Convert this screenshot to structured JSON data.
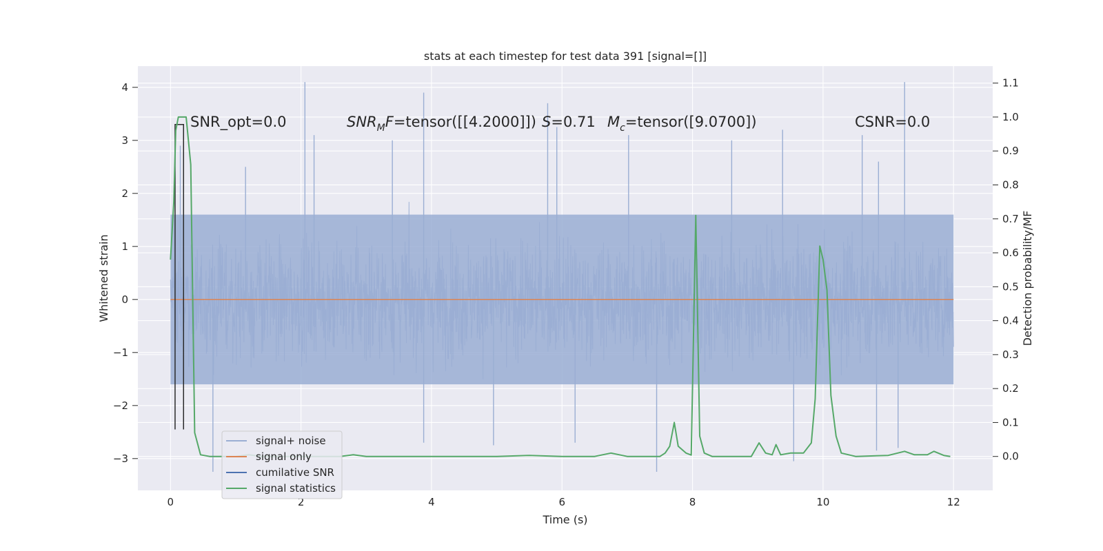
{
  "chart_data": {
    "type": "line",
    "title": "stats at each timestep for test data 391 [signal=[]]",
    "xlabel": "Time (s)",
    "ylabel": "Whitened strain",
    "y2label": "Detection probability/MF",
    "xlim": [
      -0.5,
      12.6
    ],
    "ylim": [
      -3.6,
      4.4
    ],
    "y2lim": [
      -0.1,
      1.15
    ],
    "xticks": [
      "0",
      "2",
      "4",
      "6",
      "8",
      "10",
      "12"
    ],
    "yticks": [
      "4",
      "3",
      "2",
      "1",
      "0",
      "−1",
      "−2",
      "−3"
    ],
    "y2ticks": [
      "1.1",
      "1.0",
      "0.9",
      "0.8",
      "0.7",
      "0.6",
      "0.5",
      "0.4",
      "0.3",
      "0.2",
      "0.1",
      "0.0"
    ],
    "grid": true,
    "legend_position": "lower-left",
    "annotations": {
      "snr_opt": "SNR_opt=0.0",
      "snr_mf_sym": "SNR",
      "snr_mf_sub": "M",
      "snr_mf_f": "F",
      "snr_mf_val": "=tensor([[4.2000]])",
      "s_sym": "S",
      "s_val": "=0.71",
      "mc_sym": "M",
      "mc_sub": "c",
      "mc_val": "=tensor([9.0700])",
      "csnr": "CSNR=0.0"
    },
    "series": [
      {
        "name": "signal+ noise",
        "axis": "left",
        "color": "#9aaed3",
        "style": "dense noise, envelope about ±1.6 with spikes to about ±2.7, max about 4.1",
        "spikes": [
          [
            2.06,
            4.1
          ],
          [
            3.88,
            3.9
          ],
          [
            5.78,
            3.7
          ],
          [
            11.25,
            4.1
          ],
          [
            2.2,
            3.1
          ],
          [
            3.4,
            3.0
          ],
          [
            5.92,
            3.25
          ],
          [
            7.02,
            3.1
          ],
          [
            8.6,
            3.0
          ],
          [
            9.38,
            3.2
          ],
          [
            10.6,
            3.1
          ],
          [
            10.85,
            2.6
          ],
          [
            0.15,
            2.9
          ],
          [
            1.15,
            2.5
          ],
          [
            0.65,
            -3.25
          ],
          [
            3.88,
            -2.7
          ],
          [
            7.45,
            -3.25
          ],
          [
            9.55,
            -3.05
          ],
          [
            10.82,
            -2.85
          ],
          [
            11.15,
            -2.8
          ],
          [
            4.95,
            -2.75
          ],
          [
            6.2,
            -2.7
          ]
        ]
      },
      {
        "name": "signal only",
        "axis": "left",
        "color": "#dd8452",
        "points": [
          [
            0,
            0
          ],
          [
            12,
            0
          ]
        ]
      },
      {
        "name": "cumilative SNR",
        "axis": "left",
        "color": "#4c72b0"
      },
      {
        "name": "signal statistics",
        "axis": "right",
        "color": "#55a868",
        "points": [
          [
            0,
            0.58
          ],
          [
            0.05,
            0.75
          ],
          [
            0.08,
            0.96
          ],
          [
            0.12,
            1.0
          ],
          [
            0.18,
            1.0
          ],
          [
            0.24,
            1.0
          ],
          [
            0.31,
            0.86
          ],
          [
            0.37,
            0.07
          ],
          [
            0.46,
            0.005
          ],
          [
            0.6,
            0.0
          ],
          [
            1.0,
            0.0
          ],
          [
            1.2,
            0.005
          ],
          [
            1.4,
            0.0
          ],
          [
            2.0,
            0.0
          ],
          [
            2.6,
            0.0
          ],
          [
            2.8,
            0.005
          ],
          [
            3.0,
            0.0
          ],
          [
            4.0,
            0.0
          ],
          [
            5.0,
            0.0
          ],
          [
            5.5,
            0.003
          ],
          [
            6.0,
            0.0
          ],
          [
            6.5,
            0.0
          ],
          [
            6.75,
            0.01
          ],
          [
            7.0,
            0.0
          ],
          [
            7.5,
            0.0
          ],
          [
            7.58,
            0.01
          ],
          [
            7.65,
            0.03
          ],
          [
            7.72,
            0.1
          ],
          [
            7.78,
            0.03
          ],
          [
            7.9,
            0.01
          ],
          [
            7.98,
            0.004
          ],
          [
            8.05,
            0.71
          ],
          [
            8.11,
            0.06
          ],
          [
            8.18,
            0.01
          ],
          [
            8.3,
            0.0
          ],
          [
            8.9,
            0.0
          ],
          [
            9.02,
            0.04
          ],
          [
            9.12,
            0.01
          ],
          [
            9.22,
            0.005
          ],
          [
            9.28,
            0.035
          ],
          [
            9.35,
            0.005
          ],
          [
            9.5,
            0.01
          ],
          [
            9.7,
            0.01
          ],
          [
            9.82,
            0.04
          ],
          [
            9.88,
            0.17
          ],
          [
            9.95,
            0.62
          ],
          [
            10.0,
            0.58
          ],
          [
            10.06,
            0.49
          ],
          [
            10.12,
            0.18
          ],
          [
            10.2,
            0.06
          ],
          [
            10.28,
            0.01
          ],
          [
            10.5,
            0.0
          ],
          [
            11.0,
            0.003
          ],
          [
            11.25,
            0.015
          ],
          [
            11.4,
            0.005
          ],
          [
            11.6,
            0.005
          ],
          [
            11.7,
            0.015
          ],
          [
            11.85,
            0.003
          ],
          [
            11.95,
            0.0
          ]
        ]
      },
      {
        "name": "",
        "axis": "left",
        "color": "#2a2a2a",
        "points": [
          [
            0.07,
            -2.45
          ],
          [
            0.07,
            3.3
          ],
          [
            0.2,
            3.3
          ],
          [
            0.2,
            -2.45
          ]
        ]
      }
    ]
  }
}
